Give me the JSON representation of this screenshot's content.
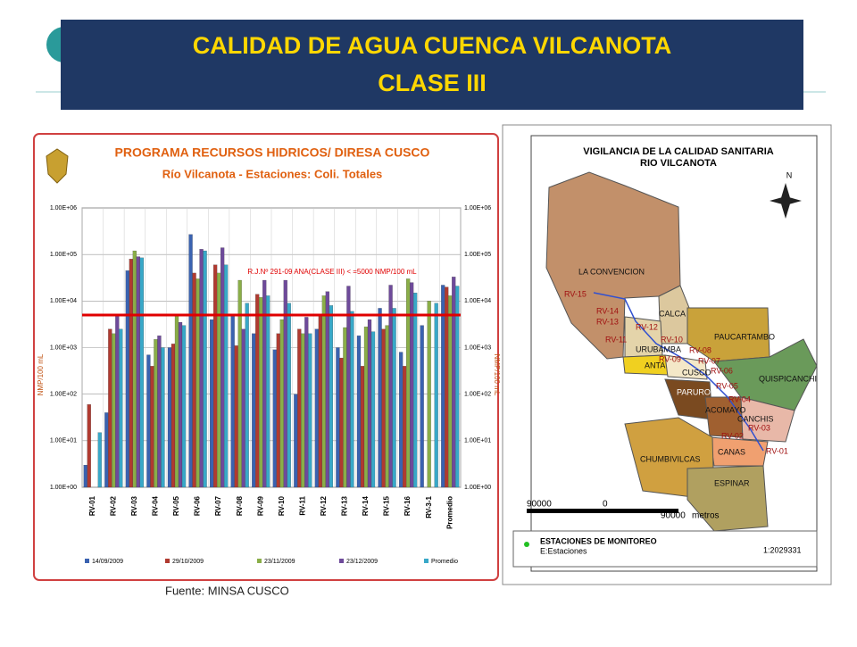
{
  "slide": {
    "title_line1": "CALIDAD DE AGUA CUENCA VILCANOTA",
    "title_line2": "CLASE III",
    "source": "Fuente: MINSA CUSCO"
  },
  "chart_data": {
    "type": "bar",
    "log_scale": true,
    "title": "PROGRAMA RECURSOS HIDRICOS/ DIRESA CUSCO",
    "subtitle": "Río Vilcanota - Estaciones: Coli. Totales",
    "y_label": "NMP/100 mL",
    "annotation": "R.J.Nº 291-09 ANA(CLASE III) < =5000 NMP/100 mL",
    "threshold": 5000,
    "threshold_color": "#e00000",
    "categories": [
      "RV-01",
      "RV-02",
      "RV-03",
      "RV-04",
      "RV-05",
      "RV-06",
      "RV-07",
      "RV-08",
      "RV-09",
      "RV-10",
      "RV-11",
      "RV-12",
      "RV-13",
      "RV-14",
      "RV-15",
      "RV-16",
      "RV-3-1",
      "Promedio"
    ],
    "series": [
      {
        "name": "14/09/2009",
        "color": "#3a62b0",
        "values": [
          3,
          40,
          45000,
          700,
          1000,
          270000,
          4000,
          5000,
          2000,
          900,
          100,
          2500,
          1000,
          1800,
          7000,
          800,
          3000,
          22000
        ]
      },
      {
        "name": "29/10/2009",
        "color": "#b03a30",
        "values": [
          60,
          2500,
          80000,
          400,
          1200,
          40000,
          60000,
          1100,
          14000,
          2000,
          2500,
          5000,
          600,
          400,
          2500,
          400,
          null,
          20000
        ]
      },
      {
        "name": "23/11/2009",
        "color": "#8aae48",
        "values": [
          null,
          2000,
          120000,
          1500,
          5000,
          30000,
          40000,
          28000,
          12000,
          4000,
          2000,
          13000,
          2700,
          2800,
          3000,
          30000,
          10000,
          13000
        ]
      },
      {
        "name": "23/12/2009",
        "color": "#6e4a9a",
        "values": [
          null,
          5000,
          90000,
          1800,
          3500,
          130000,
          140000,
          2500,
          28000,
          28000,
          4500,
          16000,
          21000,
          4000,
          22000,
          25000,
          null,
          33000
        ]
      },
      {
        "name": "Promedio",
        "color": "#38a8c8",
        "values": [
          15,
          2500,
          85000,
          1000,
          3000,
          120000,
          60000,
          9000,
          13000,
          9000,
          2000,
          8000,
          6000,
          2200,
          7000,
          15000,
          9000,
          21000
        ]
      }
    ],
    "ylim": [
      1,
      1000000
    ],
    "yticks": [
      {
        "value": 1,
        "label": "1.00E+00"
      },
      {
        "value": 10,
        "label": "1.00E+01"
      },
      {
        "value": 100,
        "label": "1.00E+02"
      },
      {
        "value": 1000,
        "label": "1.00E+03"
      },
      {
        "value": 10000,
        "label": "1.00E+04"
      },
      {
        "value": 100000,
        "label": "1.00E+05"
      },
      {
        "value": 1000000,
        "label": "1.00E+06"
      }
    ],
    "grid": true
  },
  "map": {
    "title_line1": "VIGILANCIA DE LA CALIDAD SANITARIA",
    "title_line2": "RIO VILCANOTA",
    "north": "N",
    "regions": [
      "LA CONVENCION",
      "CALCA",
      "PAUCARTAMBO",
      "QUISPICANCHI",
      "URUBAMBA",
      "ANTA",
      "CUSCO",
      "PARURO",
      "ACOMAYO",
      "CANCHIS",
      "CANAS",
      "CHUMBIVILCAS",
      "ESPINAR"
    ],
    "stations": [
      "RV-15",
      "RV-14",
      "RV-13",
      "RV-11",
      "RV-12",
      "RV-10",
      "RV-09",
      "RV-08",
      "RV-07",
      "RV-06",
      "RV-05",
      "RV-04",
      "RV-03",
      "RV-02",
      "RV-01"
    ],
    "scale": [
      "90000",
      "0",
      "90000",
      "metros"
    ],
    "legend_title": "ESTACIONES DE MONITOREO",
    "legend_item": "E:Estaciones",
    "ratio": "1:2029331"
  }
}
